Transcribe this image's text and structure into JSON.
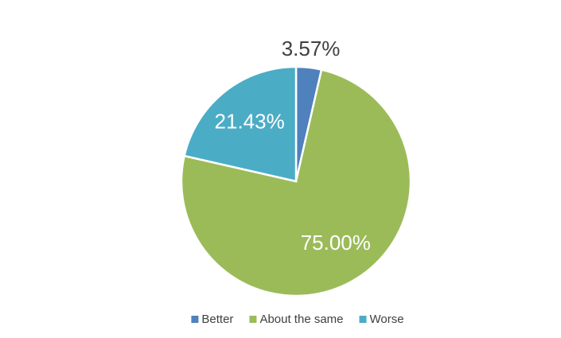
{
  "chart_data": {
    "type": "pie",
    "categories": [
      "Better",
      "About the same",
      "Worse"
    ],
    "values": [
      3.57,
      75.0,
      21.43
    ],
    "value_labels": [
      "3.57%",
      "75.00%",
      "21.43%"
    ],
    "colors": [
      "#4f81bd",
      "#9bbb59",
      "#4bacc6"
    ],
    "legend": "bottom"
  }
}
